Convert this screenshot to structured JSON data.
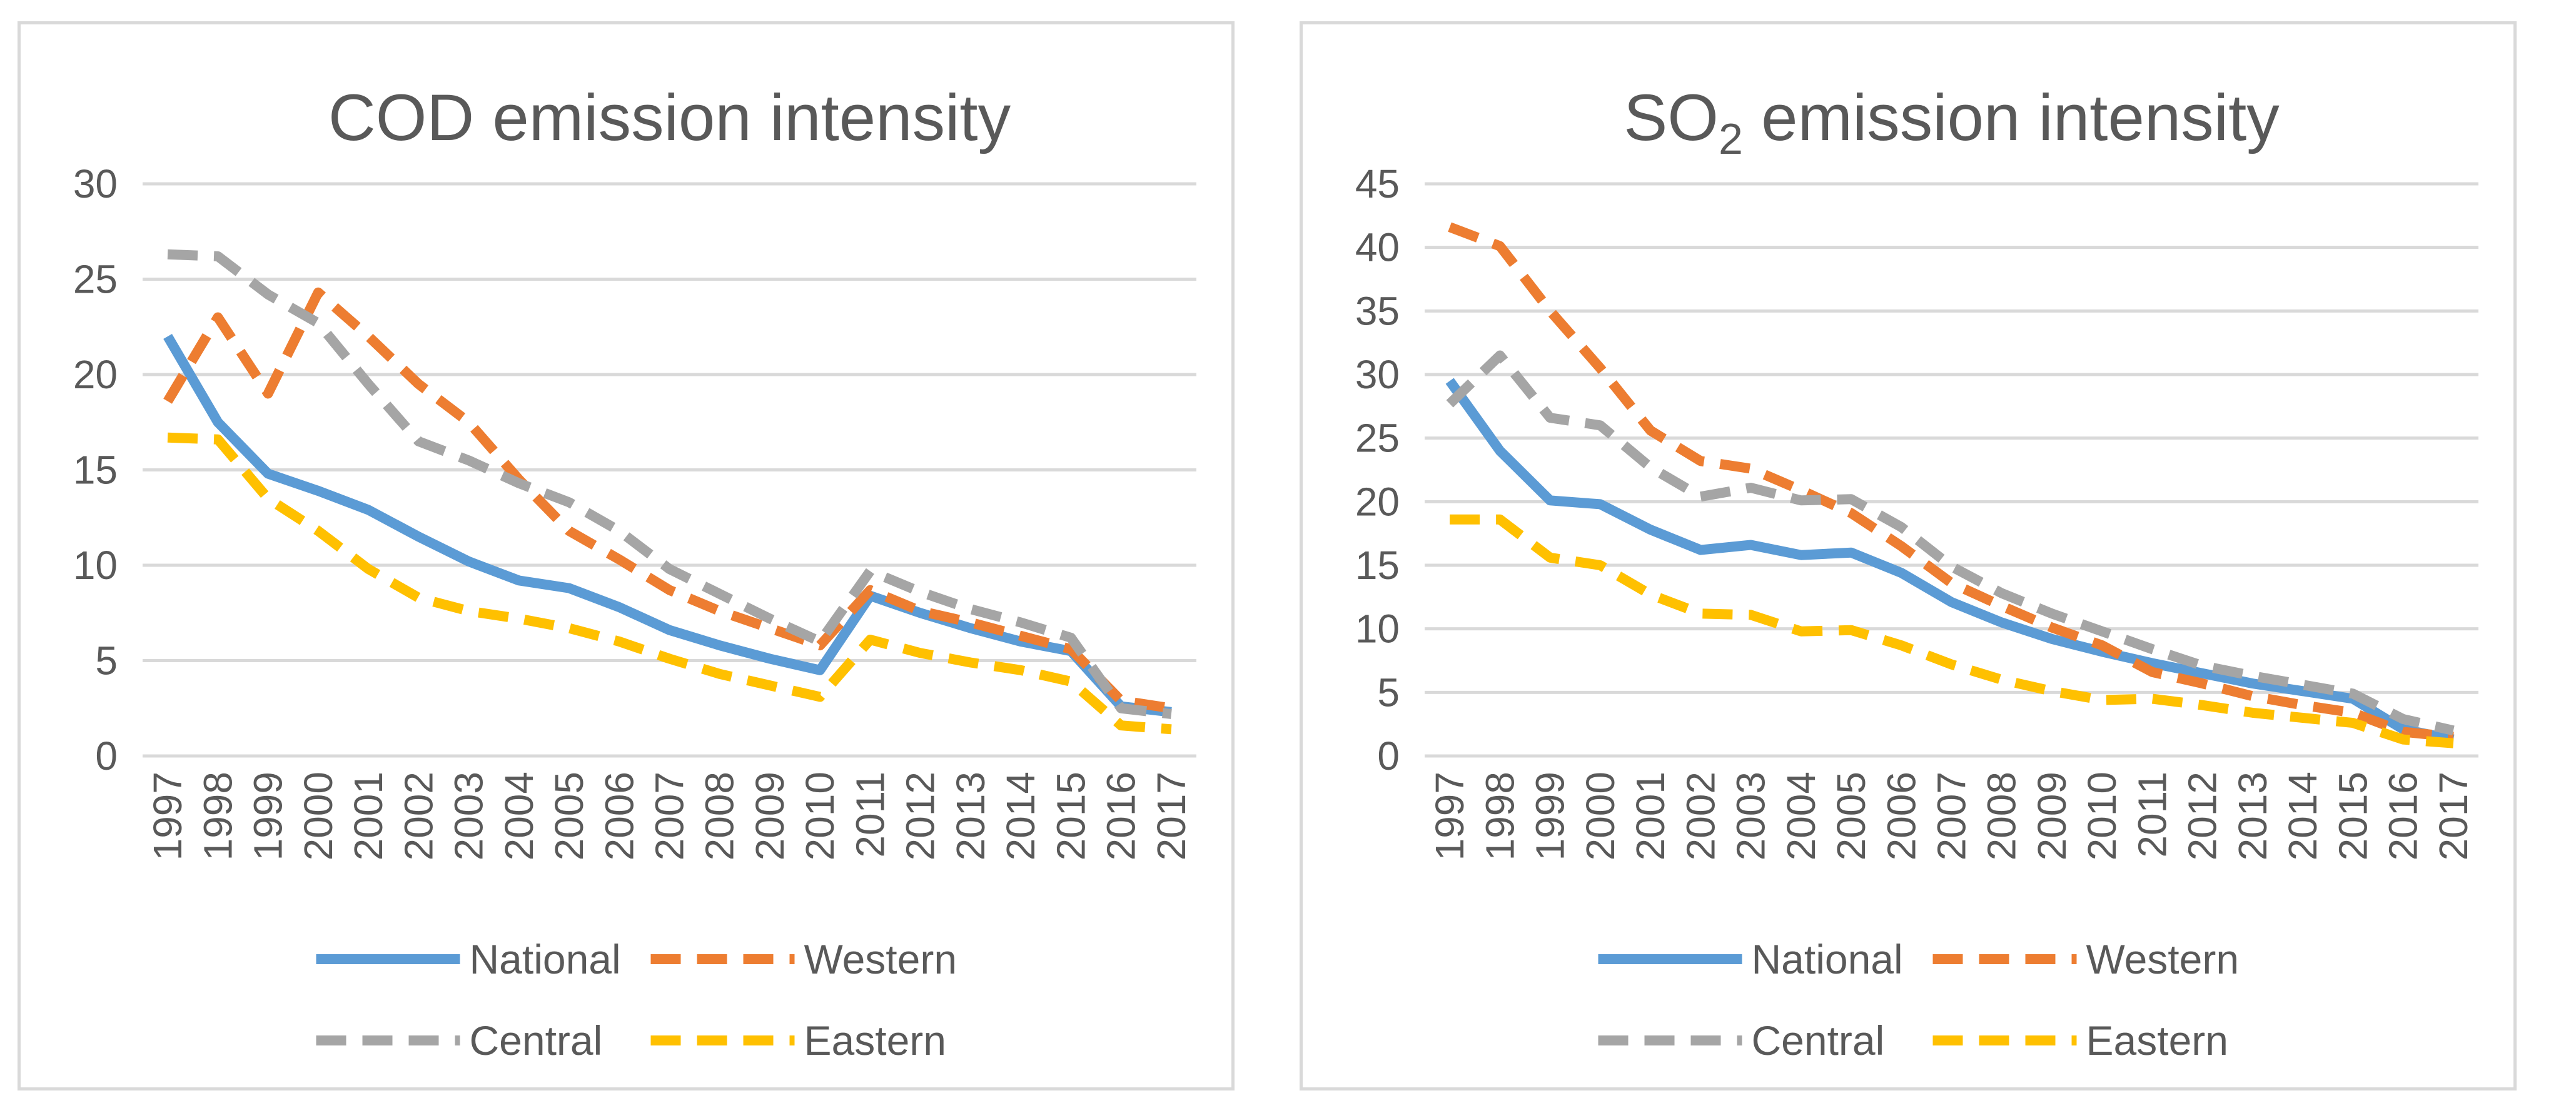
{
  "chart_data": [
    {
      "type": "line",
      "title": "COD emission intensity",
      "title_main": "COD emission intensity",
      "title_sub": "",
      "title_rest": "",
      "categories": [
        "1997",
        "1998",
        "1999",
        "2000",
        "2001",
        "2002",
        "2003",
        "2004",
        "2005",
        "2006",
        "2007",
        "2008",
        "2009",
        "2010",
        "2011",
        "2012",
        "2013",
        "2014",
        "2015",
        "2016",
        "2017"
      ],
      "yticks": [
        "0",
        "5",
        "10",
        "15",
        "20",
        "25",
        "30"
      ],
      "ylim": [
        0,
        30
      ],
      "grid": true,
      "legend_position": "bottom",
      "series": [
        {
          "name": "National",
          "color": "#5B9BD5",
          "dash": "solid",
          "values": [
            22.0,
            17.5,
            14.8,
            13.9,
            12.9,
            11.5,
            10.2,
            9.2,
            8.8,
            7.8,
            6.6,
            5.8,
            5.1,
            4.5,
            8.4,
            7.5,
            6.7,
            6.0,
            5.5,
            2.6,
            2.3
          ]
        },
        {
          "name": "Western",
          "color": "#ED7D31",
          "dash": "dashed",
          "values": [
            18.6,
            23.0,
            19.0,
            24.3,
            22.0,
            19.5,
            17.5,
            14.5,
            11.8,
            10.3,
            8.7,
            7.6,
            6.7,
            5.8,
            8.7,
            7.6,
            7.0,
            6.3,
            5.6,
            2.9,
            2.5
          ]
        },
        {
          "name": "Central",
          "color": "#A5A5A5",
          "dash": "dashed",
          "values": [
            26.3,
            26.2,
            24.2,
            22.7,
            19.5,
            16.5,
            15.5,
            14.3,
            13.3,
            11.8,
            9.8,
            8.5,
            7.2,
            6.0,
            9.7,
            8.6,
            7.7,
            7.0,
            6.2,
            2.5,
            2.2
          ]
        },
        {
          "name": "Eastern",
          "color": "#FFC000",
          "dash": "dashed",
          "values": [
            16.7,
            16.6,
            13.5,
            11.8,
            9.8,
            8.3,
            7.6,
            7.2,
            6.7,
            6.0,
            5.1,
            4.3,
            3.7,
            3.1,
            6.1,
            5.4,
            4.9,
            4.5,
            3.9,
            1.6,
            1.4
          ]
        }
      ]
    },
    {
      "type": "line",
      "title": "SO2 emission intensity",
      "title_main": "SO",
      "title_sub": "2",
      "title_rest": " emission intensity",
      "categories": [
        "1997",
        "1998",
        "1999",
        "2000",
        "2001",
        "2002",
        "2003",
        "2004",
        "2005",
        "2006",
        "2007",
        "2008",
        "2009",
        "2010",
        "2011",
        "2012",
        "2013",
        "2014",
        "2015",
        "2016",
        "2017"
      ],
      "yticks": [
        "0",
        "5",
        "10",
        "15",
        "20",
        "25",
        "30",
        "35",
        "40",
        "45"
      ],
      "ylim": [
        0,
        45
      ],
      "grid": true,
      "legend_position": "bottom",
      "series": [
        {
          "name": "National",
          "color": "#5B9BD5",
          "dash": "solid",
          "values": [
            29.5,
            24.0,
            20.1,
            19.8,
            17.8,
            16.2,
            16.6,
            15.8,
            16.0,
            14.4,
            12.1,
            10.5,
            9.2,
            8.2,
            7.3,
            6.5,
            5.7,
            5.1,
            4.5,
            2.1,
            1.3
          ]
        },
        {
          "name": "Western",
          "color": "#ED7D31",
          "dash": "dashed",
          "values": [
            41.6,
            40.1,
            35.0,
            30.5,
            25.6,
            23.2,
            22.6,
            20.9,
            19.1,
            16.5,
            13.6,
            11.8,
            10.1,
            8.7,
            6.6,
            5.7,
            4.7,
            4.0,
            3.4,
            1.9,
            1.5
          ]
        },
        {
          "name": "Central",
          "color": "#A5A5A5",
          "dash": "dashed",
          "values": [
            27.7,
            31.5,
            26.6,
            26.0,
            22.7,
            20.4,
            21.1,
            20.1,
            20.2,
            18.0,
            14.9,
            12.8,
            11.2,
            9.8,
            8.4,
            7.1,
            6.3,
            5.6,
            4.9,
            2.9,
            2.0
          ]
        },
        {
          "name": "Eastern",
          "color": "#FFC000",
          "dash": "dashed",
          "values": [
            18.6,
            18.6,
            15.6,
            15.0,
            12.7,
            11.2,
            11.1,
            9.8,
            9.9,
            8.7,
            7.2,
            6.0,
            5.1,
            4.4,
            4.5,
            4.0,
            3.4,
            3.0,
            2.6,
            1.3,
            1.0
          ]
        }
      ]
    }
  ]
}
